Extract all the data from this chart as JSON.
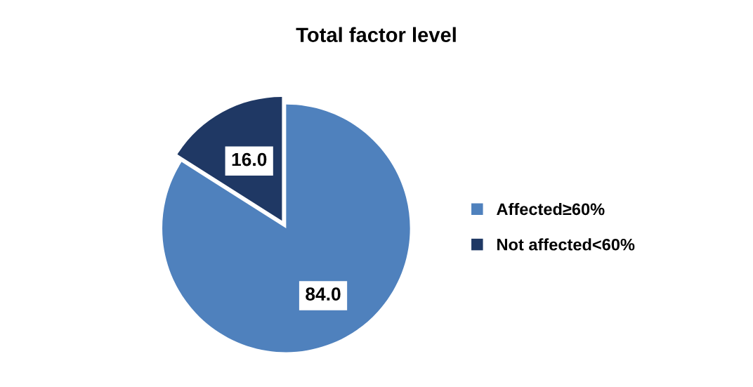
{
  "chart_data": {
    "type": "pie",
    "title": "Total factor level",
    "categories": [
      "Affected≥60%",
      "Not affected<60%"
    ],
    "values": [
      84.0,
      16.0
    ],
    "colors": [
      "#4f81bd",
      "#1f3864"
    ],
    "value_labels": [
      "84.0",
      "16.0"
    ],
    "legend": "right"
  }
}
